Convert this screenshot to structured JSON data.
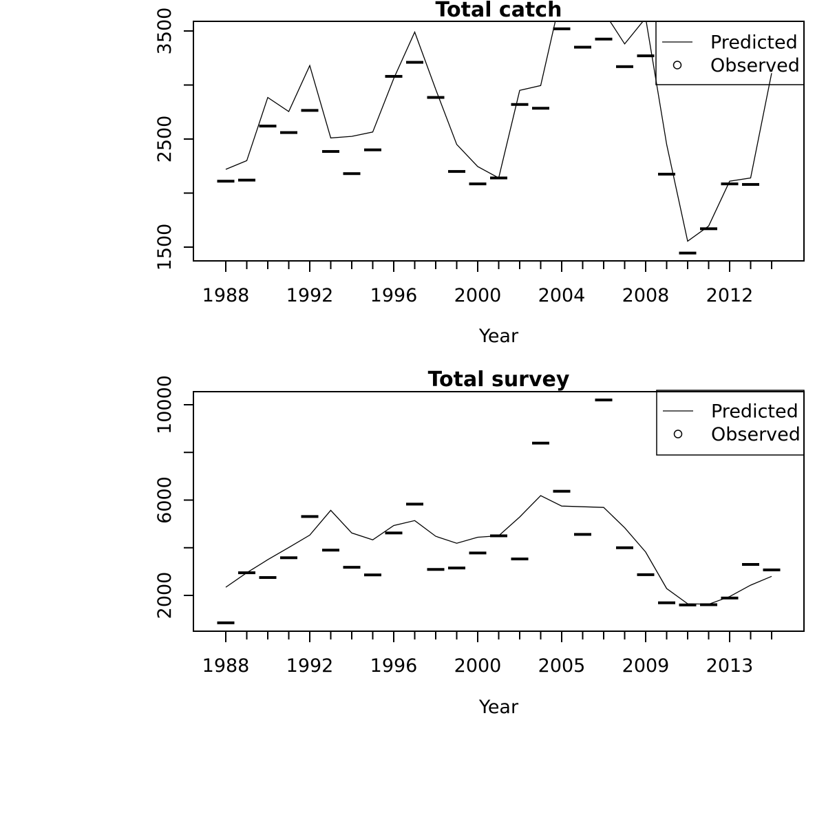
{
  "figure": {
    "background": "#ffffff",
    "ink_color": "#000000",
    "legend": {
      "predicted_label": "Predicted",
      "observed_label": "Observed",
      "predicted_symbol": "line-sample",
      "observed_symbol": "circle-outline"
    }
  },
  "chart_data": [
    {
      "type": "line",
      "title": "Total catch",
      "xlabel": "Year",
      "x_mode": "yearly",
      "x": [
        1988,
        1989,
        1990,
        1991,
        1992,
        1993,
        1994,
        1995,
        1996,
        1997,
        1998,
        1999,
        2000,
        2001,
        2002,
        2003,
        2004,
        2005,
        2006,
        2007,
        2008,
        2009,
        2010,
        2011,
        2012,
        2013,
        2014
      ],
      "series": [
        {
          "name": "Predicted",
          "style": "line",
          "values": [
            2220,
            2300,
            2885,
            2755,
            3180,
            2510,
            2525,
            2565,
            3060,
            3490,
            2960,
            2450,
            2245,
            2140,
            2950,
            2995,
            3850,
            3900,
            3680,
            3380,
            3620,
            2450,
            1555,
            1695,
            2110,
            2140,
            3110
          ]
        },
        {
          "name": "Observed",
          "style": "dash-markers",
          "values": [
            2110,
            2120,
            2620,
            2560,
            2765,
            2385,
            2180,
            2400,
            3080,
            3210,
            2885,
            2200,
            2085,
            2140,
            2820,
            2785,
            3520,
            3350,
            3425,
            3170,
            3270,
            2175,
            1445,
            1670,
            2085,
            2080,
            null
          ]
        }
      ],
      "ylim": [
        1372,
        3590
      ],
      "yticks": [
        1500,
        2000,
        2500,
        3000,
        3500
      ],
      "ytick_labels": [
        "1500",
        "",
        "2500",
        "",
        "3500"
      ],
      "xtick_labeled_years": [
        1988,
        1992,
        1996,
        2000,
        2004,
        2008,
        2012
      ],
      "grid": false,
      "legend_position": "topright",
      "note": "Predicted line exceeds the axis box during 2004-2006 and 2008 and is clipped at the box top"
    },
    {
      "type": "line",
      "title": "Total survey",
      "xlabel": "Year",
      "x_mode": "equal-spacing-by-index (year 2004 absent)",
      "x": [
        1988,
        1989,
        1990,
        1991,
        1992,
        1993,
        1994,
        1995,
        1996,
        1997,
        1998,
        1999,
        2000,
        2001,
        2002,
        2003,
        2005,
        2006,
        2007,
        2008,
        2009,
        2010,
        2011,
        2012,
        2013,
        2014,
        2015
      ],
      "series": [
        {
          "name": "Predicted",
          "style": "line",
          "values": [
            2345,
            2950,
            3500,
            4010,
            4530,
            5570,
            4620,
            4330,
            4930,
            5140,
            4480,
            4190,
            4440,
            4500,
            5290,
            6185,
            5750,
            5720,
            5690,
            4840,
            3820,
            2290,
            1650,
            1630,
            1950,
            2430,
            2800
          ]
        },
        {
          "name": "Observed",
          "style": "dash-markers",
          "values": [
            850,
            2950,
            2750,
            3580,
            5310,
            3900,
            3180,
            2860,
            4620,
            5830,
            3090,
            3150,
            3780,
            4500,
            3530,
            8390,
            6370,
            4560,
            10200,
            4000,
            2870,
            1690,
            1600,
            1610,
            1890,
            3300,
            3070
          ]
        }
      ],
      "ylim": [
        500,
        10540
      ],
      "yticks": [
        2000,
        4000,
        6000,
        8000,
        10000
      ],
      "ytick_labels": [
        "2000",
        "",
        "6000",
        "",
        "10000"
      ],
      "xtick_labeled_years": [
        1988,
        1992,
        1996,
        2000,
        2005,
        2009,
        2013
      ],
      "grid": false,
      "legend_position": "topright"
    }
  ]
}
